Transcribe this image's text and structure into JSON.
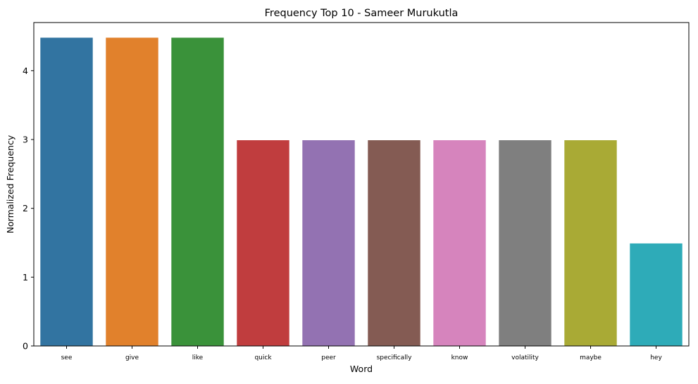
{
  "chart_data": {
    "type": "bar",
    "title": "Frequency Top 10 - Sameer Murukutla",
    "xlabel": "Word",
    "ylabel": "Normalized Frequency",
    "categories": [
      "see",
      "give",
      "like",
      "quick",
      "peer",
      "specifically",
      "know",
      "volatility",
      "maybe",
      "hey"
    ],
    "values": [
      4.48,
      4.48,
      4.48,
      2.99,
      2.99,
      2.99,
      2.99,
      2.99,
      2.99,
      1.49
    ],
    "colors": [
      "#3274a1",
      "#e1812c",
      "#3a923a",
      "#c03d3e",
      "#9372b2",
      "#845b53",
      "#d684bd",
      "#7f7f7f",
      "#a9aa35",
      "#2eabb8"
    ],
    "yticks": [
      0,
      1,
      2,
      3,
      4
    ],
    "ylim": [
      0,
      4.7
    ],
    "grid": false,
    "legend": "none"
  }
}
